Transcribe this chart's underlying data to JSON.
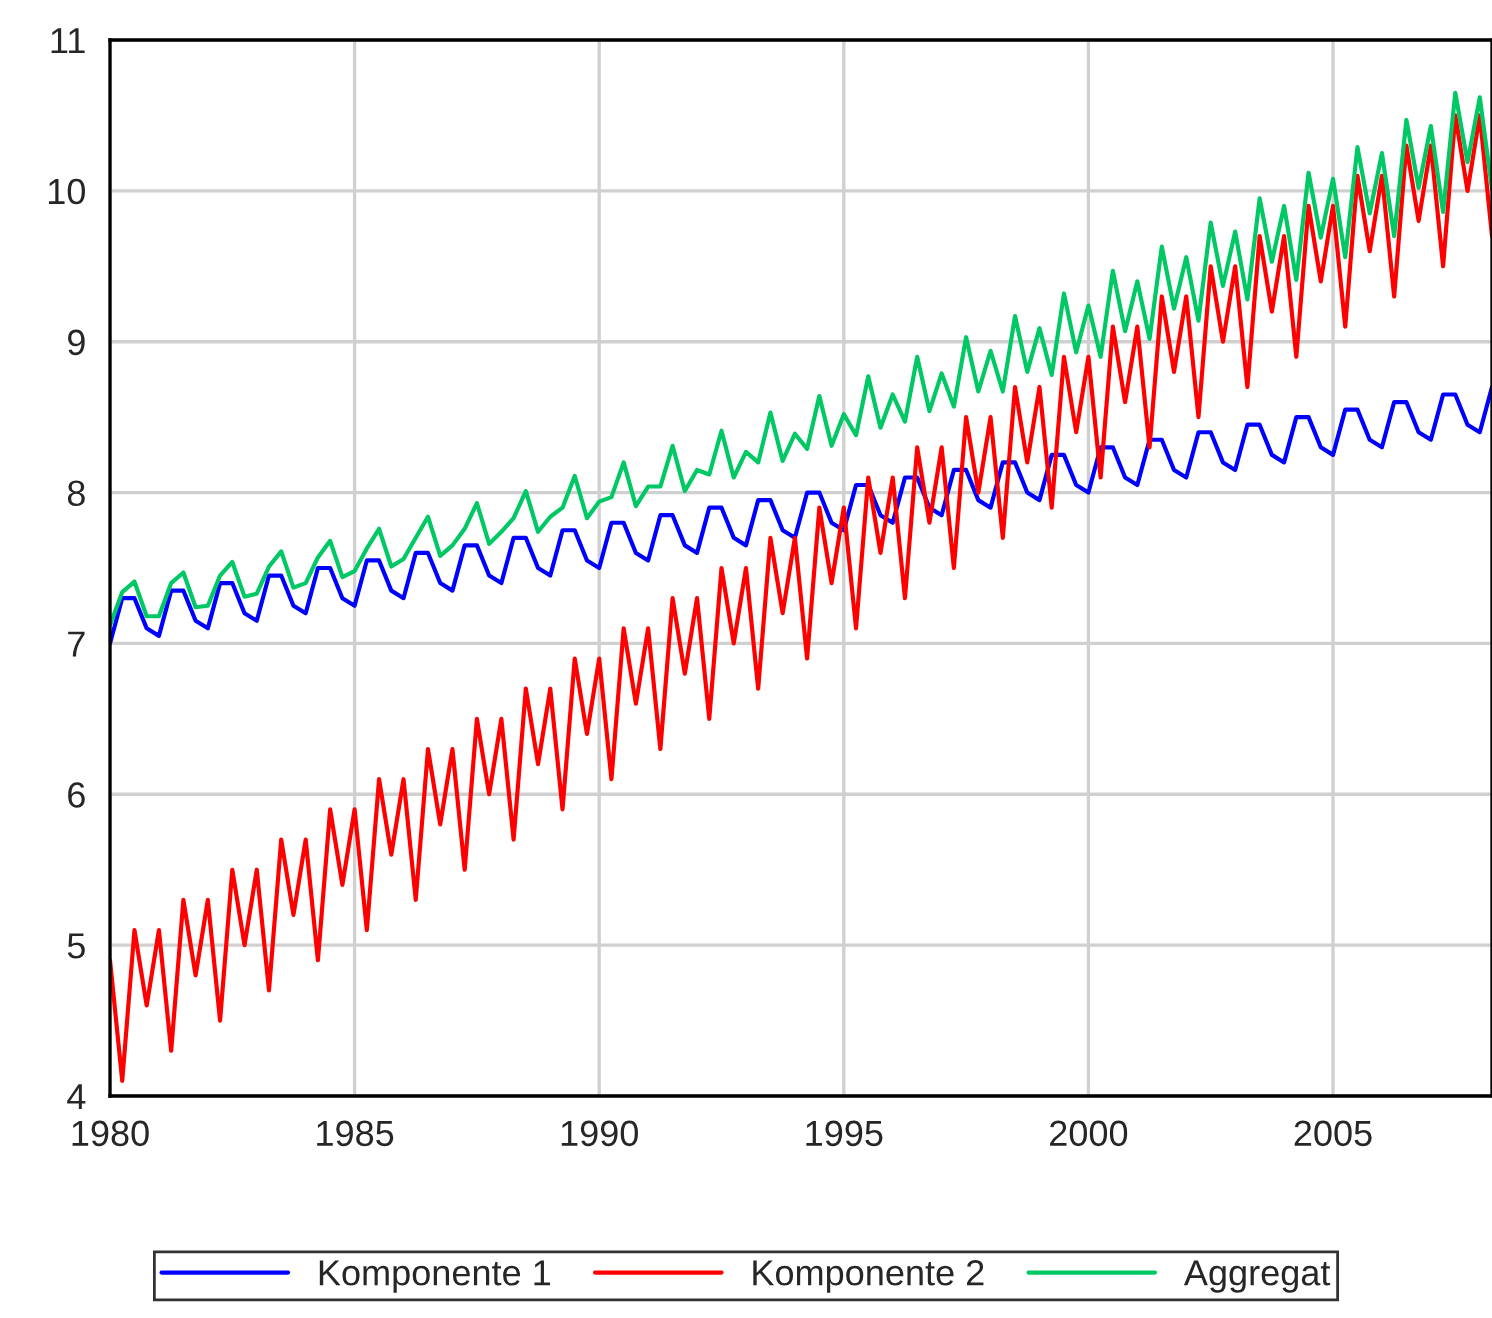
{
  "chart_data": {
    "type": "line",
    "x": [
      1980,
      1980.25,
      1980.5,
      1980.75,
      1981,
      1981.25,
      1981.5,
      1981.75,
      1982,
      1982.25,
      1982.5,
      1982.75,
      1983,
      1983.25,
      1983.5,
      1983.75,
      1984,
      1984.25,
      1984.5,
      1984.75,
      1985,
      1985.25,
      1985.5,
      1985.75,
      1986,
      1986.25,
      1986.5,
      1986.75,
      1987,
      1987.25,
      1987.5,
      1987.75,
      1988,
      1988.25,
      1988.5,
      1988.75,
      1989,
      1989.25,
      1989.5,
      1989.75,
      1990,
      1990.25,
      1990.5,
      1990.75,
      1991,
      1991.25,
      1991.5,
      1991.75,
      1992,
      1992.25,
      1992.5,
      1992.75,
      1993,
      1993.25,
      1993.5,
      1993.75,
      1994,
      1994.25,
      1994.5,
      1994.75,
      1995,
      1995.25,
      1995.5,
      1995.75,
      1996,
      1996.25,
      1996.5,
      1996.75,
      1997,
      1997.25,
      1997.5,
      1997.75,
      1998,
      1998.25,
      1998.5,
      1998.75,
      1999,
      1999.25,
      1999.5,
      1999.75,
      2000,
      2000.25,
      2000.5,
      2000.75,
      2001,
      2001.25,
      2001.5,
      2001.75,
      2002,
      2002.25,
      2002.5,
      2002.75,
      2003,
      2003.25,
      2003.5,
      2003.75,
      2004,
      2004.25,
      2004.5,
      2004.75,
      2005,
      2005.25,
      2005.5,
      2005.75,
      2006,
      2006.25,
      2006.5,
      2006.75,
      2007,
      2007.25,
      2007.5,
      2007.75,
      2008,
      2008.25
    ],
    "series": [
      {
        "name": "Komponente 1",
        "color": "#0000ff",
        "values": [
          7.0,
          7.3,
          7.3,
          7.1,
          7.05,
          7.35,
          7.35,
          7.15,
          7.1,
          7.4,
          7.4,
          7.2,
          7.15,
          7.45,
          7.45,
          7.25,
          7.2,
          7.5,
          7.5,
          7.3,
          7.25,
          7.55,
          7.55,
          7.35,
          7.3,
          7.6,
          7.6,
          7.4,
          7.35,
          7.65,
          7.65,
          7.45,
          7.4,
          7.7,
          7.7,
          7.5,
          7.45,
          7.75,
          7.75,
          7.55,
          7.5,
          7.8,
          7.8,
          7.6,
          7.55,
          7.85,
          7.85,
          7.65,
          7.6,
          7.9,
          7.9,
          7.7,
          7.65,
          7.95,
          7.95,
          7.75,
          7.7,
          8.0,
          8.0,
          7.8,
          7.75,
          8.05,
          8.05,
          7.85,
          7.8,
          8.1,
          8.1,
          7.9,
          7.85,
          8.15,
          8.15,
          7.95,
          7.9,
          8.2,
          8.2,
          8.0,
          7.95,
          8.25,
          8.25,
          8.05,
          8.0,
          8.3,
          8.3,
          8.1,
          8.05,
          8.35,
          8.35,
          8.15,
          8.1,
          8.4,
          8.4,
          8.2,
          8.15,
          8.45,
          8.45,
          8.25,
          8.2,
          8.5,
          8.5,
          8.3,
          8.25,
          8.55,
          8.55,
          8.35,
          8.3,
          8.6,
          8.6,
          8.4,
          8.35,
          8.65,
          8.65,
          8.45,
          8.4,
          8.7
        ]
      },
      {
        "name": "Komponente 2",
        "color": "#ff0000",
        "values": [
          4.9,
          4.1,
          5.1,
          4.6,
          5.1,
          4.3,
          5.3,
          4.8,
          5.3,
          4.5,
          5.5,
          5.0,
          5.5,
          4.7,
          5.7,
          5.2,
          5.7,
          4.9,
          5.9,
          5.4,
          5.9,
          5.1,
          6.1,
          5.6,
          6.1,
          5.3,
          6.3,
          5.8,
          6.3,
          5.5,
          6.5,
          6.0,
          6.5,
          5.7,
          6.7,
          6.2,
          6.7,
          5.9,
          6.9,
          6.4,
          6.9,
          6.1,
          7.1,
          6.6,
          7.1,
          6.3,
          7.3,
          6.8,
          7.3,
          6.5,
          7.5,
          7.0,
          7.5,
          6.7,
          7.7,
          7.2,
          7.7,
          6.9,
          7.9,
          7.4,
          7.9,
          7.1,
          8.1,
          7.6,
          8.1,
          7.3,
          8.3,
          7.8,
          8.3,
          7.5,
          8.5,
          8.0,
          8.5,
          7.7,
          8.7,
          8.2,
          8.7,
          7.9,
          8.9,
          8.4,
          8.9,
          8.1,
          9.1,
          8.6,
          9.1,
          8.3,
          9.3,
          8.8,
          9.3,
          8.5,
          9.5,
          9.0,
          9.5,
          8.7,
          9.7,
          9.2,
          9.7,
          8.9,
          9.9,
          9.4,
          9.9,
          9.1,
          10.1,
          9.6,
          10.1,
          9.3,
          10.3,
          9.8,
          10.3,
          9.5,
          10.5,
          10.0,
          10.5,
          9.7
        ]
      },
      {
        "name": "Aggregat",
        "color": "#00c864",
        "values": [
          7.12,
          7.34,
          7.41,
          7.18,
          7.18,
          7.4,
          7.47,
          7.24,
          7.25,
          7.45,
          7.54,
          7.31,
          7.33,
          7.51,
          7.61,
          7.37,
          7.4,
          7.57,
          7.68,
          7.44,
          7.48,
          7.63,
          7.76,
          7.51,
          7.56,
          7.7,
          7.84,
          7.58,
          7.65,
          7.76,
          7.93,
          7.66,
          7.74,
          7.83,
          8.01,
          7.74,
          7.84,
          7.9,
          8.11,
          7.83,
          7.94,
          7.97,
          8.2,
          7.91,
          8.04,
          8.04,
          8.31,
          8.01,
          8.15,
          8.12,
          8.41,
          8.1,
          8.27,
          8.2,
          8.53,
          8.21,
          8.39,
          8.29,
          8.64,
          8.31,
          8.52,
          8.38,
          8.77,
          8.43,
          8.65,
          8.47,
          8.9,
          8.54,
          8.79,
          8.57,
          9.03,
          8.67,
          8.94,
          8.67,
          9.17,
          8.8,
          9.09,
          8.78,
          9.32,
          8.93,
          9.24,
          8.9,
          9.47,
          9.07,
          9.4,
          9.02,
          9.63,
          9.22,
          9.56,
          9.14,
          9.79,
          9.37,
          9.73,
          9.28,
          9.95,
          9.53,
          9.9,
          9.41,
          10.12,
          9.69,
          10.08,
          9.56,
          10.29,
          9.85,
          10.25,
          9.7,
          10.47,
          10.02,
          10.43,
          9.86,
          10.65,
          10.19,
          10.62,
          10.01
        ]
      }
    ],
    "xlim": [
      1980,
      2008.25
    ],
    "xticks": [
      1980,
      1985,
      1990,
      1995,
      2000,
      2005
    ],
    "ylim": [
      4,
      11
    ],
    "yticks": [
      4,
      5,
      6,
      7,
      8,
      9,
      10,
      11
    ],
    "grid": true,
    "legend": "bottom",
    "line_style": "solid",
    "marker": "none"
  }
}
